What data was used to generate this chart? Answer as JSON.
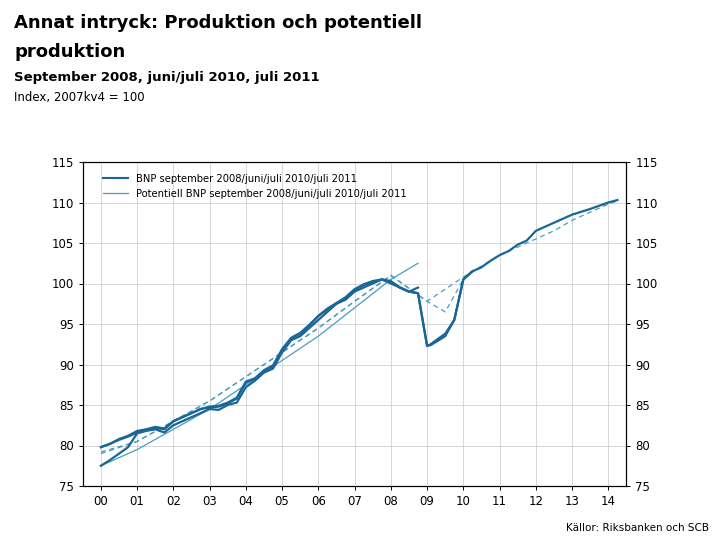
{
  "title_line1": "Annat intryck: Produktion och potentiell",
  "title_line2": "produktion",
  "subtitle": "September 2008, juni/juli 2010, juli 2011",
  "index_label": "Index, 2007kv4 = 100",
  "source": "Källor: Riksbanken och SCB",
  "background_color": "#ffffff",
  "grid_color": "#c8c8c8",
  "line_color_bnp": "#1a6696",
  "line_color_pot": "#4a9cc0",
  "ylim": [
    75,
    115
  ],
  "yticks": [
    75,
    80,
    85,
    90,
    95,
    100,
    105,
    110,
    115
  ],
  "xtick_labels": [
    "00",
    "01",
    "02",
    "03",
    "04",
    "05",
    "06",
    "07",
    "08",
    "09",
    "10",
    "11",
    "12",
    "13",
    "14"
  ],
  "xtick_vals": [
    0,
    1,
    2,
    3,
    4,
    5,
    6,
    7,
    8,
    9,
    10,
    11,
    12,
    13,
    14
  ],
  "legend_bnp": "BNP september 2008/juni/juli 2010/juli 2011",
  "legend_pot": "Potentiell BNP september 2008/juni/juli 2010/juli 2011",
  "bottom_bar_color": "#1f4e8c",
  "bnp_sep2008": {
    "x": [
      0,
      0.25,
      0.5,
      0.75,
      1.0,
      1.25,
      1.5,
      1.75,
      2.0,
      2.25,
      2.5,
      2.75,
      3.0,
      3.25,
      3.5,
      3.75,
      4.0,
      4.25,
      4.5,
      4.75,
      5.0,
      5.25,
      5.5,
      5.75,
      6.0,
      6.25,
      6.5,
      6.75,
      7.0,
      7.25,
      7.5,
      7.75,
      8.0,
      8.25,
      8.5,
      8.75
    ],
    "y": [
      77.5,
      78.2,
      79.0,
      79.8,
      81.5,
      81.8,
      82.0,
      81.6,
      82.5,
      83.0,
      83.5,
      84.0,
      84.5,
      84.4,
      85.0,
      85.3,
      87.2,
      88.0,
      89.0,
      89.5,
      91.5,
      93.0,
      93.5,
      94.5,
      95.5,
      96.5,
      97.5,
      98.0,
      99.0,
      99.5,
      100.0,
      100.5,
      100.0,
      99.5,
      99.0,
      99.5
    ]
  },
  "bnp_jun2010": {
    "x": [
      0,
      0.25,
      0.5,
      0.75,
      1.0,
      1.25,
      1.5,
      1.75,
      2.0,
      2.25,
      2.5,
      2.75,
      3.0,
      3.25,
      3.5,
      3.75,
      4.0,
      4.25,
      4.5,
      4.75,
      5.0,
      5.25,
      5.5,
      5.75,
      6.0,
      6.25,
      6.5,
      6.75,
      7.0,
      7.25,
      7.5,
      7.75,
      8.0,
      8.25,
      8.5,
      8.75,
      9.0,
      9.1,
      9.25,
      9.5,
      9.75,
      10.0,
      10.25
    ],
    "y": [
      79.8,
      80.2,
      80.7,
      81.1,
      81.6,
      81.9,
      82.2,
      82.0,
      83.0,
      83.5,
      84.0,
      84.5,
      84.7,
      84.8,
      85.2,
      85.8,
      87.8,
      88.2,
      89.2,
      89.8,
      91.8,
      93.2,
      93.8,
      94.8,
      96.0,
      96.8,
      97.5,
      98.2,
      99.2,
      99.8,
      100.2,
      100.5,
      100.2,
      99.5,
      99.0,
      98.8,
      92.3,
      92.5,
      93.0,
      93.8,
      95.5,
      100.5,
      101.5
    ]
  },
  "bnp_jul2011": {
    "x": [
      0,
      0.25,
      0.5,
      0.75,
      1.0,
      1.25,
      1.5,
      1.75,
      2.0,
      2.25,
      2.5,
      2.75,
      3.0,
      3.25,
      3.5,
      3.75,
      4.0,
      4.25,
      4.5,
      4.75,
      5.0,
      5.25,
      5.5,
      5.75,
      6.0,
      6.25,
      6.5,
      6.75,
      7.0,
      7.25,
      7.5,
      7.75,
      8.0,
      8.25,
      8.5,
      8.75,
      9.0,
      9.1,
      9.25,
      9.5,
      9.75,
      10.0,
      10.25,
      10.5,
      10.75,
      11.0,
      11.25,
      11.5,
      11.75,
      12.0,
      12.5,
      13.0,
      13.5,
      14.0,
      14.25
    ],
    "y": [
      79.8,
      80.2,
      80.8,
      81.2,
      81.8,
      82.0,
      82.3,
      82.1,
      83.0,
      83.5,
      84.0,
      84.5,
      84.8,
      84.9,
      85.3,
      85.9,
      87.9,
      88.3,
      89.3,
      89.9,
      91.9,
      93.3,
      93.9,
      94.9,
      96.0,
      96.9,
      97.6,
      98.3,
      99.3,
      99.9,
      100.3,
      100.5,
      100.3,
      99.5,
      99.0,
      98.8,
      92.3,
      92.4,
      92.8,
      93.5,
      95.5,
      100.5,
      101.5,
      102.0,
      102.8,
      103.5,
      104.0,
      104.8,
      105.3,
      106.5,
      107.5,
      108.5,
      109.2,
      110.0,
      110.3
    ]
  },
  "pot_sep2008": {
    "x": [
      0,
      1.0,
      2.0,
      3.0,
      4.0,
      5.0,
      6.0,
      7.0,
      8.0,
      8.75
    ],
    "y": [
      77.5,
      79.5,
      82.0,
      84.5,
      87.5,
      90.5,
      93.5,
      97.0,
      100.5,
      102.5
    ]
  },
  "pot_jun2010": {
    "x": [
      0,
      1.0,
      2.0,
      3.0,
      4.0,
      5.0,
      6.0,
      7.0,
      8.0,
      9.0,
      9.5,
      10.0,
      10.25
    ],
    "y": [
      79.0,
      80.5,
      83.0,
      85.5,
      88.5,
      91.5,
      94.5,
      97.8,
      101.0,
      97.8,
      96.5,
      100.5,
      101.5
    ]
  },
  "pot_jul2011": {
    "x": [
      0,
      1.0,
      2.0,
      3.0,
      4.0,
      5.0,
      6.0,
      7.0,
      8.0,
      9.0,
      10.0,
      11.0,
      11.5,
      12.0,
      12.5,
      13.0,
      13.5,
      14.0,
      14.25
    ],
    "y": [
      79.2,
      80.5,
      83.0,
      85.5,
      88.5,
      91.5,
      94.5,
      97.8,
      101.0,
      97.8,
      100.8,
      103.5,
      104.5,
      105.5,
      106.5,
      107.8,
      108.8,
      109.8,
      110.2
    ]
  }
}
